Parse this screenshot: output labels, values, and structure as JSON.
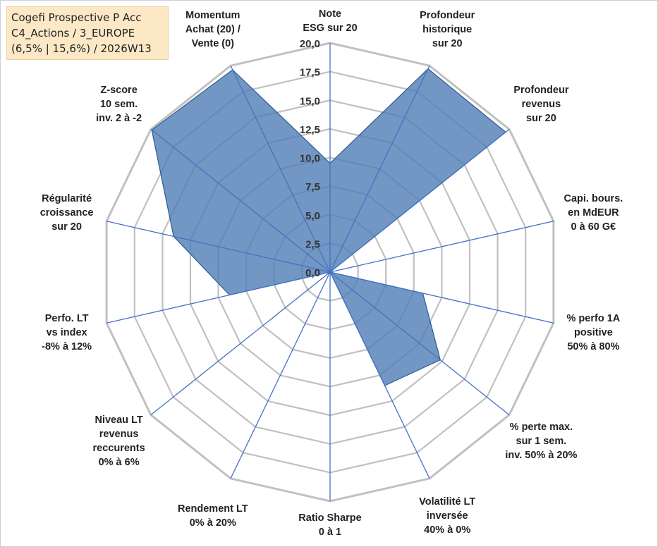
{
  "title": {
    "lines": [
      "Cogefi Prospective P Acc",
      "C4_Actions / 3_EUROPE",
      "(6,5% | 15,6%) / 2026W13"
    ]
  },
  "colors": {
    "fill": "#4f7db5",
    "stroke": "#2e5a94",
    "grid": "#c0c0c0",
    "axis": "#4472c4"
  },
  "chart_data": {
    "type": "radar",
    "title": "Cogefi Prospective P Acc — C4_Actions / 3_EUROPE (6,5% | 15,6%) / 2026W13",
    "rmin": 0,
    "rmax": 20,
    "tick_values": [
      0,
      2.5,
      5,
      7.5,
      10,
      12.5,
      15,
      17.5,
      20
    ],
    "tick_labels": [
      "0,0",
      "2,5",
      "5,0",
      "7,5",
      "10,0",
      "12,5",
      "15,0",
      "17,5",
      "20,0"
    ],
    "axes": [
      {
        "label": [
          "Note",
          "ESG sur 20"
        ],
        "value": 9.5
      },
      {
        "label": [
          "Profondeur",
          "historique",
          "sur 20"
        ],
        "value": 19.7
      },
      {
        "label": [
          "Profondeur",
          "revenus",
          "sur 20"
        ],
        "value": 19.6
      },
      {
        "label": [
          "Capi. bours.",
          "en MdEUR",
          "0 à 60 G€"
        ],
        "value": 0
      },
      {
        "label": [
          "% perfo 1A",
          "positive",
          "50% à 80%"
        ],
        "value": 8.3
      },
      {
        "label": [
          "% perte max.",
          "sur 1 sem.",
          "inv. 50% à 20%"
        ],
        "value": 12.3
      },
      {
        "label": [
          "Volatilité LT",
          "inversée",
          "40% à 0%"
        ],
        "value": 11.0
      },
      {
        "label": [
          "Ratio Sharpe",
          "0 à 1"
        ],
        "value": 0
      },
      {
        "label": [
          "Rendement LT",
          "0% à 20%"
        ],
        "value": 0
      },
      {
        "label": [
          "Niveau LT",
          "revenus",
          "reccurents",
          "0% à 6%"
        ],
        "value": 0
      },
      {
        "label": [
          "Perfo. LT",
          "vs index",
          "-8% à 12%"
        ],
        "value": 9.0
      },
      {
        "label": [
          "Régularité",
          "croissance",
          "sur 20"
        ],
        "value": 14.0
      },
      {
        "label": [
          "Z-score",
          "10 sem.",
          "inv. 2 à -2"
        ],
        "value": 19.9
      },
      {
        "label": [
          "Momentum",
          "Achat (20) /",
          "Vente (0)"
        ],
        "value": 19.6
      }
    ]
  }
}
